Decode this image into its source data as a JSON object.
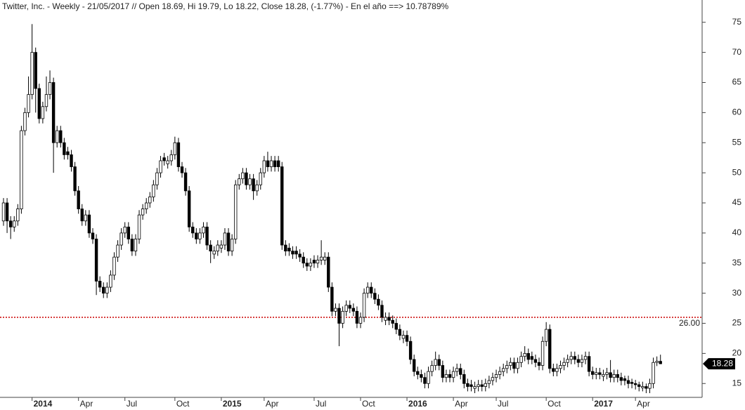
{
  "chart_data": {
    "type": "candlestick",
    "title": "Twitter, Inc. - Weekly - 21/05/2017 // Open 18.69, Hi 19.79, Lo 18.22, Close 18.28, (-1.77%) - En el año ==> 10.78789%",
    "categories": [
      null,
      null,
      null,
      null,
      null,
      null,
      null,
      null,
      "2014",
      null,
      null,
      null,
      null,
      null,
      null,
      null,
      null,
      null,
      null,
      null,
      null,
      "Apr",
      null,
      null,
      null,
      null,
      null,
      null,
      null,
      null,
      null,
      null,
      null,
      null,
      "Jul",
      null,
      null,
      null,
      null,
      null,
      null,
      null,
      null,
      null,
      null,
      null,
      null,
      null,
      "Oct",
      null,
      null,
      null,
      null,
      null,
      null,
      null,
      null,
      null,
      null,
      null,
      null,
      "2015",
      null,
      null,
      null,
      null,
      null,
      null,
      null,
      null,
      null,
      null,
      null,
      "Apr",
      null,
      null,
      null,
      null,
      null,
      null,
      null,
      null,
      null,
      null,
      null,
      null,
      null,
      "Jul",
      null,
      null,
      null,
      null,
      null,
      null,
      null,
      null,
      null,
      null,
      null,
      null,
      "Oct",
      null,
      null,
      null,
      null,
      null,
      null,
      null,
      null,
      null,
      null,
      null,
      null,
      "2016",
      null,
      null,
      null,
      null,
      null,
      null,
      null,
      null,
      null,
      null,
      null,
      null,
      "Apr",
      null,
      null,
      null,
      null,
      null,
      null,
      null,
      null,
      null,
      null,
      null,
      "Jul",
      null,
      null,
      null,
      null,
      null,
      null,
      null,
      null,
      null,
      null,
      null,
      null,
      null,
      "Oct",
      null,
      null,
      null,
      null,
      null,
      null,
      null,
      null,
      null,
      null,
      null,
      null,
      "2017",
      null,
      null,
      null,
      null,
      null,
      null,
      null,
      null,
      null,
      null,
      null,
      "Apr",
      null,
      null,
      null,
      null,
      null,
      null,
      null
    ],
    "open": [
      42,
      45,
      42,
      41,
      42,
      44,
      57,
      60,
      63,
      70,
      64,
      59,
      61,
      63,
      65,
      55,
      57,
      55,
      53.5,
      53,
      51,
      47,
      44,
      42,
      43,
      40,
      39,
      32,
      31,
      30,
      31,
      33,
      36,
      38,
      40,
      41,
      39,
      37,
      39,
      43,
      44,
      45,
      46,
      48,
      50,
      52.5,
      51.5,
      52,
      53,
      55,
      51,
      50,
      47,
      41,
      40,
      39,
      40,
      41,
      38,
      36.5,
      37,
      37.5,
      38,
      40,
      37,
      39,
      48,
      49,
      50,
      48,
      49,
      47,
      48,
      50,
      52,
      51,
      52,
      52,
      51,
      38,
      37.5,
      37,
      37,
      36.5,
      36,
      35,
      34.5,
      35.5,
      35,
      35.5,
      35.5,
      36,
      31,
      27,
      27.5,
      25,
      27,
      28,
      27.5,
      27,
      25,
      26,
      30,
      31,
      30,
      29,
      28,
      25.5,
      26,
      25.5,
      25,
      24,
      22.5,
      23,
      22,
      19,
      17,
      16.5,
      16,
      15,
      17,
      18,
      19,
      18,
      16,
      16.5,
      16,
      17,
      17.5,
      16.5,
      15,
      14.8,
      14.2,
      14.5,
      14.8,
      14.5,
      15,
      15.5,
      16,
      16.5,
      17,
      17.5,
      18,
      18.5,
      17.5,
      18.5,
      19.5,
      20,
      19.5,
      19,
      18.5,
      18,
      22,
      24,
      17.5,
      17,
      17.5,
      18,
      18.5,
      19,
      19.5,
      19,
      18.5,
      19,
      19.5,
      17,
      16.5,
      16.8,
      16.2,
      16.5,
      16.8,
      16,
      16.5,
      16,
      15.8,
      15.5,
      15.2,
      15,
      14.8,
      14.3,
      14.5,
      14.2,
      15,
      18.5,
      18.69
    ],
    "high": [
      45.8,
      45.8,
      42.8,
      42.8,
      44.8,
      57.8,
      60.8,
      66,
      74.7,
      70.8,
      64.8,
      61.8,
      66,
      67,
      65.8,
      57.8,
      57.8,
      55.8,
      54.3,
      53.8,
      51.8,
      47.8,
      44.8,
      43.8,
      43.8,
      40.8,
      39.8,
      32.8,
      31.8,
      31.8,
      33.8,
      36.8,
      38.8,
      40.8,
      41.8,
      41.8,
      39.8,
      39.8,
      43.8,
      44.8,
      45.8,
      46.8,
      48.8,
      50.8,
      52.8,
      53.3,
      52.8,
      53.8,
      56,
      55.8,
      51.8,
      50.8,
      47.8,
      41.8,
      40.8,
      40.8,
      41.8,
      41.8,
      38.8,
      37.8,
      38.8,
      38.8,
      40.8,
      40.8,
      39.8,
      48.8,
      49.8,
      50.8,
      50.8,
      49.8,
      49.8,
      48.8,
      50.8,
      52.8,
      53.5,
      52.8,
      52.8,
      52.8,
      51.8,
      38.8,
      38.3,
      37.8,
      37.8,
      37.3,
      36.8,
      35.8,
      35.8,
      36.3,
      36.3,
      38.8,
      36.8,
      36.8,
      31.8,
      28.3,
      28.3,
      27.8,
      28.8,
      28.8,
      28.3,
      27.8,
      26.8,
      30.8,
      31.8,
      31.8,
      30.8,
      29.8,
      28.8,
      26.8,
      26.8,
      26.3,
      25.8,
      24.8,
      23.8,
      23.8,
      22.8,
      19.8,
      17.8,
      17.3,
      16.8,
      17.8,
      18.8,
      20.3,
      19.8,
      18.8,
      17.3,
      17.3,
      17.8,
      18.3,
      18.3,
      17.3,
      15.8,
      15.6,
      15.3,
      15.6,
      15.6,
      15.8,
      16.3,
      16.8,
      17.3,
      17.8,
      18.3,
      18.8,
      19.3,
      19.3,
      19.3,
      20.3,
      21.2,
      20.8,
      20.3,
      19.8,
      19.3,
      22.8,
      25.2,
      24.8,
      18.3,
      18.3,
      18.8,
      19.3,
      19.8,
      20.3,
      20.3,
      19.8,
      19.8,
      20.3,
      20.3,
      17.8,
      17.6,
      17.6,
      17.3,
      17.6,
      18.9,
      17.3,
      17.3,
      16.8,
      16.3,
      16.3,
      15.8,
      15.6,
      15.3,
      15.3,
      15,
      15.8,
      19.3,
      19.5,
      19.79
    ],
    "low": [
      41.2,
      40,
      39,
      40.2,
      41.2,
      43.2,
      56.2,
      59.2,
      62.2,
      60,
      58.2,
      58.2,
      60.2,
      62.2,
      50,
      54.2,
      54.2,
      52.2,
      52.2,
      50.2,
      46.2,
      43.2,
      41.2,
      41.2,
      39.2,
      38.2,
      29.7,
      30.2,
      29.2,
      29.2,
      30.2,
      32.2,
      35.2,
      37.2,
      39.2,
      38.2,
      36.2,
      36.2,
      38.2,
      42.2,
      43.2,
      44.2,
      45.2,
      47.2,
      49.2,
      51.2,
      50.7,
      51.2,
      52.2,
      50.2,
      49.2,
      46.2,
      40.2,
      39.2,
      38.2,
      38.2,
      39.2,
      37.2,
      35,
      35.7,
      36.2,
      36.7,
      37.2,
      36.2,
      36.2,
      38.2,
      47.2,
      48.2,
      47.2,
      47.2,
      45.5,
      46.2,
      47.2,
      49.2,
      50.2,
      50.2,
      50.2,
      50.2,
      37.2,
      36.2,
      36.2,
      35.7,
      35.7,
      35.2,
      34.2,
      33.7,
      33.7,
      34.2,
      34.2,
      34.7,
      34.7,
      30.2,
      26.2,
      26.2,
      21.2,
      24.2,
      26.2,
      26.7,
      26.2,
      24.2,
      24.2,
      25.2,
      29.2,
      29.2,
      28.2,
      27.2,
      25.2,
      24.7,
      24.7,
      24.2,
      23.2,
      22.2,
      21.7,
      21.2,
      18.2,
      16.2,
      15.7,
      15.2,
      14.2,
      14.2,
      16.2,
      17.2,
      17.2,
      15.2,
      15.2,
      15.2,
      15.2,
      16.2,
      15.7,
      14.2,
      13.7,
      13.7,
      13.4,
      13.7,
      13.7,
      13.7,
      14.2,
      14.7,
      15.2,
      15.7,
      16.2,
      16.7,
      17.2,
      16.7,
      16.7,
      17.7,
      18.7,
      18.2,
      18.2,
      17.7,
      17.2,
      17.2,
      21.2,
      16.7,
      16.2,
      16.2,
      16.7,
      17.2,
      17.7,
      18.2,
      18.2,
      17.7,
      17.7,
      18.2,
      16.2,
      15.7,
      15.7,
      15.7,
      15.4,
      15.7,
      15.2,
      15.2,
      15.2,
      14.7,
      14.7,
      14.2,
      14.2,
      14,
      13.7,
      13.7,
      13.4,
      13.4,
      14.2,
      17.9,
      18.22
    ],
    "close": [
      45,
      42,
      41,
      42,
      44,
      57,
      60,
      63,
      70,
      64,
      59,
      61,
      63,
      65,
      55,
      57,
      55,
      53,
      53,
      51,
      47,
      44,
      42,
      43,
      40,
      39,
      32,
      31,
      30,
      31,
      33,
      36,
      38,
      40,
      41,
      39,
      37,
      39,
      43,
      44,
      45,
      46,
      48,
      50,
      52,
      52,
      52,
      53,
      55,
      51,
      50,
      47,
      41,
      40,
      39,
      40,
      41,
      38,
      37,
      37,
      38,
      38,
      40,
      37,
      39,
      48,
      49,
      50,
      48,
      49,
      47,
      48,
      50,
      52,
      51,
      52,
      51,
      51,
      38,
      37,
      37,
      36.5,
      36.5,
      36,
      35,
      34.5,
      35,
      35,
      35.5,
      36,
      36,
      31,
      27,
      27.5,
      25,
      27,
      28,
      27.5,
      27,
      25,
      26,
      30,
      31,
      30,
      29,
      28,
      26,
      26,
      25.5,
      25,
      24,
      23,
      23,
      22,
      19,
      17,
      16.5,
      16,
      15,
      17,
      18,
      19,
      18,
      16,
      16.5,
      16,
      17,
      17.5,
      16.5,
      15,
      14.5,
      14.5,
      14.5,
      14.8,
      14.5,
      15,
      15.5,
      16,
      16.5,
      17,
      17.5,
      18,
      18.5,
      17.5,
      18.5,
      19.5,
      20,
      19,
      19,
      18.5,
      18,
      22,
      24,
      17.5,
      17,
      17.5,
      18,
      18.5,
      19,
      19.5,
      19,
      18.5,
      19,
      19.5,
      17,
      16.5,
      16.8,
      16.5,
      16.5,
      16.8,
      16,
      16.5,
      16,
      15.5,
      15.5,
      15,
      15,
      14.8,
      14.5,
      14.5,
      14.2,
      15,
      18.5,
      18.7,
      18.28
    ],
    "up_color": "#ffffff",
    "down_color": "#000000",
    "ylim": [
      12.7,
      78.7
    ],
    "yticks": [
      15,
      20,
      25,
      30,
      35,
      40,
      45,
      50,
      55,
      60,
      65,
      70,
      75
    ],
    "reference_line": {
      "value": 26,
      "label": "26.00",
      "color": "#cc0000"
    }
  }
}
